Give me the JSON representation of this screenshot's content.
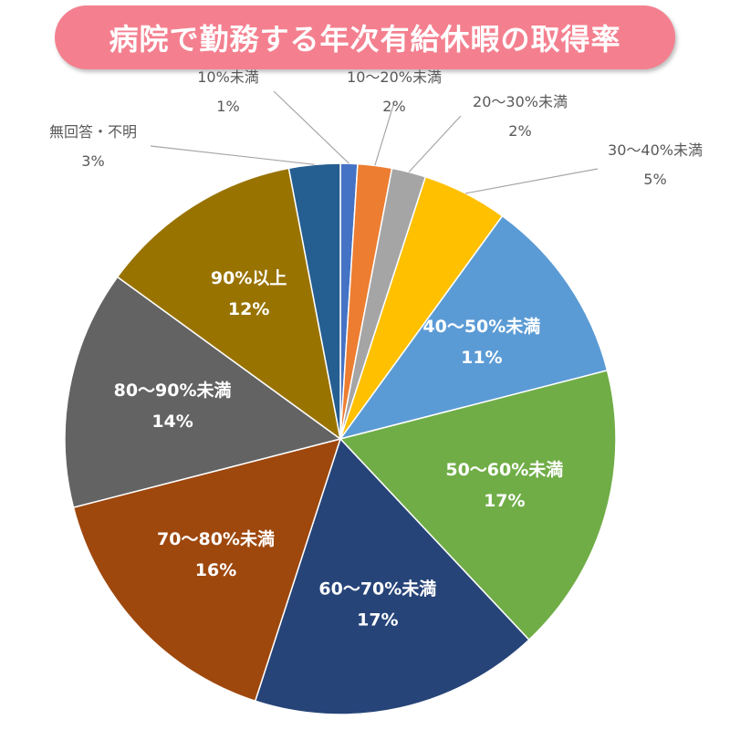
{
  "chart_data": {
    "type": "pie",
    "title": "病院で勤務する年次有給休暇の取得率",
    "slices": [
      {
        "label": "10%未満",
        "value": 1,
        "value_label": "1%",
        "color": "#4472c4",
        "label_position": "outside"
      },
      {
        "label": "10～20%未満",
        "value": 2,
        "value_label": "2%",
        "color": "#ed7d31",
        "label_position": "outside"
      },
      {
        "label": "20～30%未満",
        "value": 2,
        "value_label": "2%",
        "color": "#a5a5a5",
        "label_position": "outside"
      },
      {
        "label": "30～40%未満",
        "value": 5,
        "value_label": "5%",
        "color": "#ffc000",
        "label_position": "outside"
      },
      {
        "label": "40～50%未満",
        "value": 11,
        "value_label": "11%",
        "color": "#5b9bd5",
        "label_position": "inside"
      },
      {
        "label": "50～60%未満",
        "value": 17,
        "value_label": "17%",
        "color": "#70ad47",
        "label_position": "inside"
      },
      {
        "label": "60～70%未満",
        "value": 17,
        "value_label": "17%",
        "color": "#264478",
        "label_position": "inside"
      },
      {
        "label": "70～80%未満",
        "value": 16,
        "value_label": "16%",
        "color": "#9e480e",
        "label_position": "inside"
      },
      {
        "label": "80～90%未満",
        "value": 14,
        "value_label": "14%",
        "color": "#636363",
        "label_position": "inside"
      },
      {
        "label": "90%以上",
        "value": 12,
        "value_label": "12%",
        "color": "#997300",
        "label_position": "inside"
      },
      {
        "label": "無回答・不明",
        "value": 3,
        "value_label": "3%",
        "color": "#255e91",
        "label_position": "outside"
      }
    ]
  }
}
